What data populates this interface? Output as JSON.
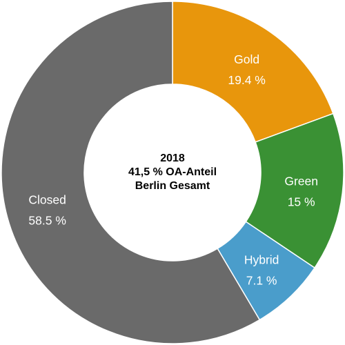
{
  "chart_data": {
    "type": "pie",
    "variant": "donut",
    "center_text": [
      "2018",
      "41,5 % OA-Anteil",
      "Berlin Gesamt"
    ],
    "slices": [
      {
        "name": "Gold",
        "value": 19.4,
        "label": "19.4 %",
        "color": "#E8960C"
      },
      {
        "name": "Green",
        "value": 15,
        "label": "15 %",
        "color": "#3A9134"
      },
      {
        "name": "Hybrid",
        "value": 7.1,
        "label": "7.1 %",
        "color": "#4A9DCB"
      },
      {
        "name": "Closed",
        "value": 58.5,
        "label": "58.5 %",
        "color": "#6A6A6A"
      }
    ],
    "start_angle": "12 o'clock",
    "direction": "clockwise",
    "legend": "none"
  }
}
